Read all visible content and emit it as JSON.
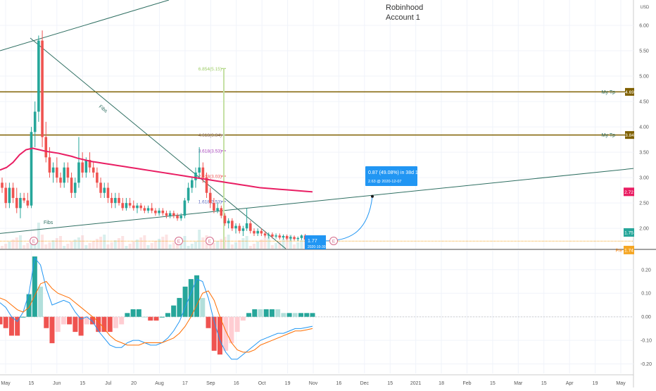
{
  "header": {
    "title_line1": "Robinhood",
    "title_line2": "Account 1",
    "currency": "USD"
  },
  "colors": {
    "up": "#26a69a",
    "down": "#ef5350",
    "ma": "#e91e63",
    "target": "#7f6000",
    "trend": "#2f6f62",
    "projection": "#2196f3",
    "price_line": "#f5a623",
    "macd": "#2196f3",
    "signal": "#ff6d00"
  },
  "chart_data": [
    {
      "type": "candlestick",
      "x_tick_labels": [
        "May",
        "15",
        "Jun",
        "15",
        "Jul",
        "20",
        "Aug",
        "17",
        "Sep",
        "16",
        "Oct",
        "19",
        "Nov",
        "16",
        "Dec",
        "15",
        "2021",
        "18",
        "Feb",
        "15",
        "Mar",
        "15",
        "Apr",
        "19",
        "May"
      ],
      "y_ticks": [
        "6.00",
        "5.50",
        "5.00",
        "4.50",
        "4.00",
        "3.50",
        "3.00",
        "2.50",
        "2.00"
      ],
      "ylim": [
        1.6,
        6.5
      ],
      "horizontal_levels": [
        {
          "label": "My Tp",
          "value": 4.69,
          "badge": "4.69"
        },
        {
          "label": "My Tp",
          "value": 3.84,
          "badge": "3.84"
        }
      ],
      "fib_levels": [
        {
          "label": "6.854(5.15)",
          "value": 5.15
        },
        {
          "label": "4.618(3.84)",
          "value": 3.84
        },
        {
          "label": "3.618(3.53)",
          "value": 3.53
        },
        {
          "label": "2.618(3.03)",
          "value": 3.03
        },
        {
          "label": "1.618(2.53)",
          "value": 2.53
        }
      ],
      "trendline_labels": [
        "Fibs",
        "Fibs"
      ],
      "moving_average_badge": "2.72",
      "last_price_badge": "1.75",
      "current_price_marker": {
        "value": "1.77",
        "date": "2020-10-30",
        "price_line_label": "Pre",
        "price_line_badge": "1.74"
      },
      "projection": {
        "label": "0.87 (49.08%) in 38d 1h",
        "sublabel": "2.63 @ 2020-12-07",
        "from": 1.77,
        "to": 2.63
      },
      "event_markers": [
        "E",
        "E",
        "E",
        "E"
      ],
      "volume": [],
      "series_candles": [
        [
          2.9,
          3.0,
          2.7,
          2.8
        ],
        [
          2.8,
          2.9,
          2.4,
          2.5
        ],
        [
          2.5,
          2.9,
          2.4,
          2.8
        ],
        [
          2.8,
          2.9,
          2.5,
          2.6
        ],
        [
          2.6,
          2.8,
          2.3,
          2.4
        ],
        [
          2.4,
          2.7,
          2.2,
          2.6
        ],
        [
          2.6,
          2.7,
          2.5,
          2.55
        ],
        [
          2.55,
          2.7,
          2.4,
          2.45
        ],
        [
          2.45,
          4.0,
          2.4,
          3.9
        ],
        [
          3.9,
          4.5,
          3.6,
          4.3
        ],
        [
          4.3,
          5.8,
          4.1,
          5.7
        ],
        [
          5.7,
          5.9,
          3.6,
          3.8
        ],
        [
          3.8,
          4.1,
          3.3,
          3.4
        ],
        [
          3.4,
          3.6,
          3.0,
          3.1
        ],
        [
          3.1,
          3.3,
          2.9,
          3.2
        ],
        [
          3.2,
          3.4,
          2.9,
          3.0
        ],
        [
          3.0,
          3.1,
          2.8,
          2.9
        ],
        [
          2.9,
          3.3,
          2.8,
          3.2
        ],
        [
          3.2,
          3.3,
          2.9,
          3.0
        ],
        [
          3.0,
          3.1,
          2.6,
          2.7
        ],
        [
          2.7,
          3.0,
          2.6,
          2.9
        ],
        [
          2.9,
          3.8,
          2.8,
          3.3
        ],
        [
          3.3,
          3.5,
          3.0,
          3.1
        ],
        [
          3.1,
          3.4,
          3.0,
          3.35
        ],
        [
          3.35,
          3.5,
          3.1,
          3.2
        ],
        [
          3.2,
          3.3,
          3.0,
          3.1
        ],
        [
          3.1,
          3.2,
          2.8,
          2.9
        ],
        [
          2.9,
          3.0,
          2.6,
          2.7
        ],
        [
          2.7,
          2.9,
          2.6,
          2.8
        ],
        [
          2.8,
          2.9,
          2.5,
          2.6
        ],
        [
          2.6,
          2.7,
          2.4,
          2.5
        ],
        [
          2.5,
          2.7,
          2.4,
          2.6
        ],
        [
          2.6,
          2.7,
          2.45,
          2.5
        ],
        [
          2.5,
          2.6,
          2.35,
          2.4
        ],
        [
          2.4,
          2.6,
          2.35,
          2.5
        ],
        [
          2.5,
          2.6,
          2.4,
          2.45
        ],
        [
          2.45,
          2.55,
          2.35,
          2.4
        ],
        [
          2.4,
          2.5,
          2.3,
          2.45
        ],
        [
          2.45,
          2.5,
          2.35,
          2.4
        ],
        [
          2.4,
          2.45,
          2.3,
          2.35
        ],
        [
          2.35,
          2.45,
          2.3,
          2.4
        ],
        [
          2.4,
          2.5,
          2.3,
          2.35
        ],
        [
          2.35,
          2.4,
          2.25,
          2.3
        ],
        [
          2.3,
          2.4,
          2.25,
          2.35
        ],
        [
          2.35,
          2.4,
          2.25,
          2.3
        ],
        [
          2.3,
          2.35,
          2.2,
          2.25
        ],
        [
          2.25,
          2.35,
          2.2,
          2.3
        ],
        [
          2.3,
          2.35,
          2.2,
          2.25
        ],
        [
          2.25,
          2.3,
          2.15,
          2.2
        ],
        [
          2.2,
          2.3,
          2.15,
          2.25
        ],
        [
          2.25,
          2.6,
          2.2,
          2.55
        ],
        [
          2.55,
          2.9,
          2.5,
          2.8
        ],
        [
          2.8,
          3.0,
          2.7,
          2.95
        ],
        [
          2.95,
          3.2,
          2.8,
          3.1
        ],
        [
          3.1,
          3.6,
          3.0,
          3.2
        ],
        [
          3.2,
          3.3,
          2.9,
          3.0
        ],
        [
          3.0,
          3.1,
          2.6,
          2.7
        ],
        [
          2.7,
          2.8,
          2.4,
          2.5
        ],
        [
          2.5,
          2.6,
          2.3,
          2.35
        ],
        [
          2.35,
          2.5,
          2.3,
          2.4
        ],
        [
          2.4,
          2.45,
          2.2,
          2.25
        ],
        [
          2.25,
          2.3,
          2.05,
          2.1
        ],
        [
          2.1,
          2.2,
          2.0,
          2.15
        ],
        [
          2.15,
          2.2,
          1.95,
          2.0
        ],
        [
          2.0,
          2.1,
          1.9,
          2.05
        ],
        [
          2.05,
          2.1,
          1.9,
          1.95
        ],
        [
          1.95,
          2.05,
          1.85,
          2.0
        ],
        [
          2.0,
          2.4,
          1.95,
          2.1
        ],
        [
          2.1,
          2.15,
          1.9,
          1.95
        ],
        [
          1.95,
          2.0,
          1.85,
          1.9
        ],
        [
          1.9,
          2.0,
          1.85,
          1.95
        ],
        [
          1.95,
          2.0,
          1.85,
          1.9
        ],
        [
          1.9,
          1.95,
          1.82,
          1.86
        ],
        [
          1.86,
          1.92,
          1.8,
          1.88
        ],
        [
          1.88,
          1.92,
          1.8,
          1.84
        ],
        [
          1.84,
          1.9,
          1.8,
          1.86
        ],
        [
          1.86,
          1.9,
          1.78,
          1.82
        ],
        [
          1.82,
          1.88,
          1.78,
          1.85
        ],
        [
          1.85,
          1.88,
          1.77,
          1.8
        ],
        [
          1.8,
          1.86,
          1.76,
          1.83
        ],
        [
          1.83,
          1.86,
          1.76,
          1.79
        ],
        [
          1.79,
          1.84,
          1.75,
          1.81
        ],
        [
          1.81,
          1.88,
          1.77,
          1.86
        ],
        [
          1.86,
          1.89,
          1.76,
          1.78
        ],
        [
          1.78,
          1.84,
          1.74,
          1.8
        ],
        [
          1.8,
          1.85,
          1.75,
          1.77
        ]
      ],
      "moving_average": [
        3.15,
        3.2,
        3.3,
        3.45,
        3.55,
        3.58,
        3.55,
        3.52,
        3.5,
        3.48,
        3.45,
        3.42,
        3.38,
        3.35,
        3.32,
        3.3,
        3.28,
        3.26,
        3.24,
        3.22,
        3.2,
        3.18,
        3.16,
        3.14,
        3.12,
        3.1,
        3.08,
        3.06,
        3.04,
        3.02,
        3.0,
        2.98,
        2.96,
        2.94,
        2.92,
        2.9,
        2.88,
        2.86,
        2.84,
        2.82,
        2.8,
        2.79,
        2.78,
        2.77,
        2.76,
        2.75,
        2.74,
        2.73,
        2.72
      ]
    },
    {
      "type": "macd",
      "y_ticks": [
        "0.20",
        "0.10",
        "0.00",
        "-0.10",
        "-0.20"
      ],
      "ylim": [
        -0.24,
        0.28
      ],
      "macd": [
        0.06,
        0.04,
        0.0,
        -0.02,
        0.02,
        0.1,
        0.25,
        0.22,
        0.12,
        0.05,
        0.06,
        0.07,
        0.06,
        0.02,
        -0.01,
        0.0,
        -0.02,
        -0.06,
        -0.09,
        -0.12,
        -0.13,
        -0.13,
        -0.11,
        -0.1,
        -0.1,
        -0.11,
        -0.12,
        -0.12,
        -0.11,
        -0.09,
        -0.06,
        -0.02,
        0.04,
        0.1,
        0.16,
        0.15,
        0.08,
        -0.02,
        -0.1,
        -0.15,
        -0.18,
        -0.18,
        -0.16,
        -0.14,
        -0.12,
        -0.1,
        -0.09,
        -0.08,
        -0.07,
        -0.07,
        -0.06,
        -0.05,
        -0.05,
        -0.045,
        -0.04
      ],
      "signal": [
        0.08,
        0.07,
        0.05,
        0.03,
        0.02,
        0.04,
        0.09,
        0.14,
        0.15,
        0.12,
        0.1,
        0.09,
        0.08,
        0.06,
        0.04,
        0.02,
        0.0,
        -0.02,
        -0.05,
        -0.08,
        -0.1,
        -0.11,
        -0.12,
        -0.12,
        -0.12,
        -0.11,
        -0.11,
        -0.11,
        -0.11,
        -0.1,
        -0.09,
        -0.07,
        -0.04,
        0.0,
        0.05,
        0.1,
        0.11,
        0.07,
        0.0,
        -0.06,
        -0.11,
        -0.14,
        -0.15,
        -0.15,
        -0.14,
        -0.12,
        -0.11,
        -0.1,
        -0.09,
        -0.08,
        -0.07,
        -0.06,
        -0.06,
        -0.055,
        -0.05
      ]
    }
  ]
}
